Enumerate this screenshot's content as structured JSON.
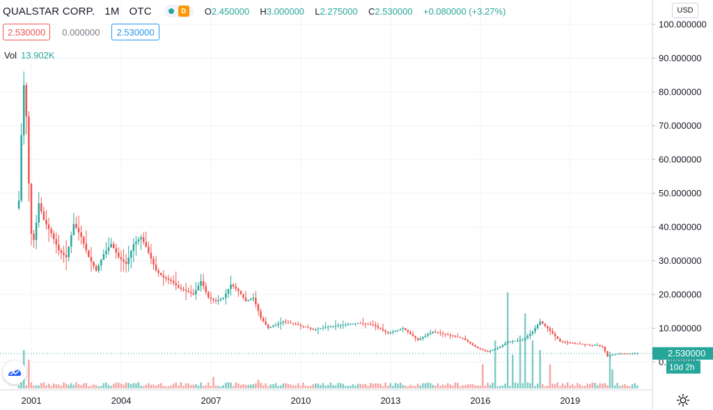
{
  "header": {
    "symbol": "QUALSTAR CORP.",
    "interval": "1M",
    "exchange": "OTC",
    "delay_badge": "D",
    "ohlc": {
      "o_label": "O",
      "o": "2.450000",
      "h_label": "H",
      "h": "3.000000",
      "l_label": "L",
      "l": "2.275000",
      "c_label": "C",
      "c": "2.530000",
      "change": "+0.080000 (+3.27%)"
    }
  },
  "price_row": {
    "bid": "2.530000",
    "spread": "0.000000",
    "ask": "2.530000"
  },
  "volume": {
    "label": "Vol",
    "value": "13.902K"
  },
  "currency": "USD",
  "last_price_label": "2.530000",
  "countdown_label": "10d 2h",
  "colors": {
    "up": "#26a69a",
    "down": "#ef5350",
    "up_vol": "#80cbc4",
    "down_vol": "#f4a6a3",
    "grid": "#f0f3fa",
    "axis_text": "#131722"
  },
  "icons": {
    "logo": "tradingview-logo-icon",
    "settings": "gear-icon"
  },
  "chart_data": {
    "type": "candlestick",
    "y_axis": {
      "ticks": [
        "0.000000",
        "10.000000",
        "20.000000",
        "30.000000",
        "40.000000",
        "50.000000",
        "60.000000",
        "70.000000",
        "80.000000",
        "90.000000",
        "100.000000"
      ],
      "ylim": [
        0,
        100
      ]
    },
    "x_axis": {
      "ticks": [
        "2001",
        "2004",
        "2007",
        "2010",
        "2013",
        "2016",
        "2019"
      ],
      "xlim": [
        1999.95,
        2021.75
      ]
    },
    "last_close": 2.53,
    "grid": true,
    "price_series": [
      {
        "x": 2000.58,
        "v": 45.5
      },
      {
        "x": 2000.67,
        "v": 48
      },
      {
        "x": 2000.75,
        "v": 68
      },
      {
        "x": 2000.83,
        "v": 82
      },
      {
        "x": 2000.92,
        "v": 72
      },
      {
        "x": 2001.0,
        "v": 52
      },
      {
        "x": 2001.08,
        "v": 38
      },
      {
        "x": 2001.17,
        "v": 36
      },
      {
        "x": 2001.33,
        "v": 47
      },
      {
        "x": 2001.5,
        "v": 42
      },
      {
        "x": 2001.75,
        "v": 38
      },
      {
        "x": 2002.0,
        "v": 33
      },
      {
        "x": 2002.25,
        "v": 31
      },
      {
        "x": 2002.5,
        "v": 41
      },
      {
        "x": 2002.75,
        "v": 37
      },
      {
        "x": 2003.0,
        "v": 31
      },
      {
        "x": 2003.25,
        "v": 27
      },
      {
        "x": 2003.5,
        "v": 32
      },
      {
        "x": 2003.75,
        "v": 35
      },
      {
        "x": 2004.0,
        "v": 31
      },
      {
        "x": 2004.25,
        "v": 29
      },
      {
        "x": 2004.5,
        "v": 35
      },
      {
        "x": 2004.75,
        "v": 37
      },
      {
        "x": 2004.92,
        "v": 34
      },
      {
        "x": 2005.25,
        "v": 27
      },
      {
        "x": 2005.5,
        "v": 25
      },
      {
        "x": 2005.75,
        "v": 24
      },
      {
        "x": 2006.0,
        "v": 22
      },
      {
        "x": 2006.25,
        "v": 21
      },
      {
        "x": 2006.5,
        "v": 20
      },
      {
        "x": 2006.75,
        "v": 24
      },
      {
        "x": 2007.0,
        "v": 19
      },
      {
        "x": 2007.25,
        "v": 18
      },
      {
        "x": 2007.5,
        "v": 19
      },
      {
        "x": 2007.75,
        "v": 23
      },
      {
        "x": 2008.0,
        "v": 21
      },
      {
        "x": 2008.25,
        "v": 18
      },
      {
        "x": 2008.5,
        "v": 19
      },
      {
        "x": 2008.75,
        "v": 13
      },
      {
        "x": 2009.0,
        "v": 10
      },
      {
        "x": 2009.25,
        "v": 11
      },
      {
        "x": 2009.5,
        "v": 12
      },
      {
        "x": 2010.0,
        "v": 11
      },
      {
        "x": 2010.5,
        "v": 9.5
      },
      {
        "x": 2011.0,
        "v": 10.5
      },
      {
        "x": 2011.5,
        "v": 11
      },
      {
        "x": 2012.0,
        "v": 11.5
      },
      {
        "x": 2012.5,
        "v": 11
      },
      {
        "x": 2013.0,
        "v": 8.5
      },
      {
        "x": 2013.5,
        "v": 10
      },
      {
        "x": 2014.0,
        "v": 6.5
      },
      {
        "x": 2014.5,
        "v": 9
      },
      {
        "x": 2015.0,
        "v": 8
      },
      {
        "x": 2015.5,
        "v": 7
      },
      {
        "x": 2016.0,
        "v": 4
      },
      {
        "x": 2016.33,
        "v": 3
      },
      {
        "x": 2016.75,
        "v": 4.5
      },
      {
        "x": 2017.0,
        "v": 6
      },
      {
        "x": 2017.5,
        "v": 6.5
      },
      {
        "x": 2017.83,
        "v": 9
      },
      {
        "x": 2018.08,
        "v": 12
      },
      {
        "x": 2018.33,
        "v": 10
      },
      {
        "x": 2018.75,
        "v": 6
      },
      {
        "x": 2019.25,
        "v": 5.5
      },
      {
        "x": 2019.75,
        "v": 5
      },
      {
        "x": 2020.0,
        "v": 5
      },
      {
        "x": 2020.17,
        "v": 4.5
      },
      {
        "x": 2020.33,
        "v": 1.7
      },
      {
        "x": 2020.5,
        "v": 2.2
      },
      {
        "x": 2020.75,
        "v": 2.5
      },
      {
        "x": 2021.08,
        "v": 2.4
      },
      {
        "x": 2021.25,
        "v": 2.53
      }
    ],
    "volume_spikes": [
      {
        "x": 2000.75,
        "v": 0.4
      },
      {
        "x": 2000.9,
        "v": 0.3
      },
      {
        "x": 2007.1,
        "v": 0.12
      },
      {
        "x": 2008.6,
        "v": 0.09
      },
      {
        "x": 2016.1,
        "v": 0.25
      },
      {
        "x": 2016.5,
        "v": 0.5
      },
      {
        "x": 2016.92,
        "v": 1.0
      },
      {
        "x": 2017.08,
        "v": 0.35
      },
      {
        "x": 2017.33,
        "v": 0.55
      },
      {
        "x": 2017.5,
        "v": 0.78
      },
      {
        "x": 2017.75,
        "v": 0.5
      },
      {
        "x": 2018.0,
        "v": 0.4
      },
      {
        "x": 2018.33,
        "v": 0.25
      },
      {
        "x": 2020.33,
        "v": 0.38
      },
      {
        "x": 2020.42,
        "v": 0.2
      }
    ]
  }
}
